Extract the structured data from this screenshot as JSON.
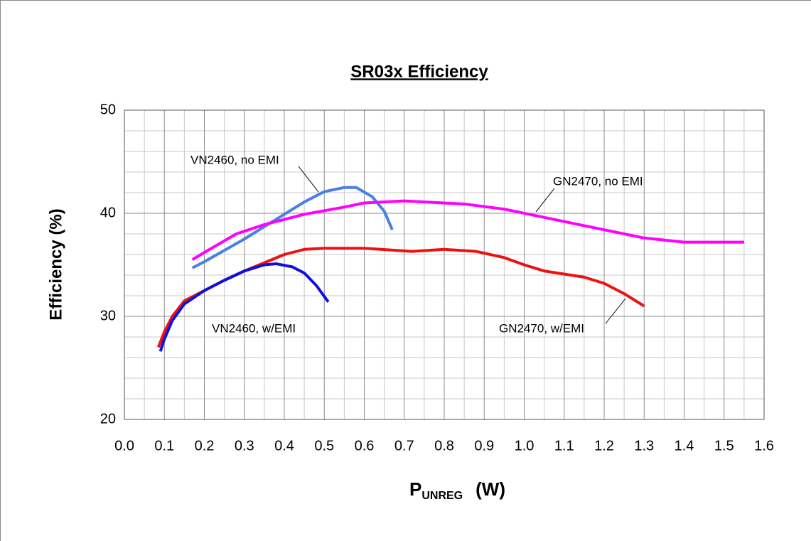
{
  "chart_data": {
    "type": "line",
    "title": "SR03x Efficiency",
    "x_label": {
      "main": "P",
      "sub": "UNREG",
      "unit": "(W)"
    },
    "y_label": "Efficiency (%)",
    "xlim": [
      0,
      1.6
    ],
    "ylim": [
      20,
      50
    ],
    "xticks": [
      {
        "value": 0,
        "label": "0.0"
      },
      0.1,
      0.2,
      0.3,
      0.4,
      0.5,
      0.6,
      0.7,
      0.8,
      0.9,
      {
        "value": 1,
        "label": "1.0"
      },
      1.1,
      1.2,
      1.3,
      1.4,
      1.5,
      1.6
    ],
    "yticks": [
      20,
      30,
      40,
      50
    ],
    "minor_xticks": [
      0.05,
      0.15,
      0.25,
      0.35,
      0.45,
      0.55,
      0.65,
      0.75,
      0.85,
      0.95,
      1.05,
      1.15,
      1.25,
      1.35,
      1.45,
      1.55
    ],
    "minor_yticks": [
      22,
      24,
      26,
      28,
      32,
      34,
      36,
      38,
      42,
      44,
      46,
      48
    ],
    "grid": true,
    "series": [
      {
        "name": "VN2460, no EMI",
        "color": "#4a7fe6",
        "x": [
          0.17,
          0.2,
          0.25,
          0.3,
          0.35,
          0.4,
          0.45,
          0.5,
          0.55,
          0.58,
          0.62,
          0.65,
          0.67
        ],
        "values": [
          34.7,
          35.3,
          36.4,
          37.5,
          38.7,
          39.9,
          41.1,
          42.1,
          42.5,
          42.5,
          41.6,
          40.2,
          38.4
        ]
      },
      {
        "name": "GN2470, no EMI",
        "color": "#ff00ff",
        "x": [
          0.17,
          0.2,
          0.28,
          0.35,
          0.45,
          0.55,
          0.6,
          0.7,
          0.85,
          0.95,
          1.05,
          1.15,
          1.3,
          1.4,
          1.55
        ],
        "values": [
          35.5,
          36.2,
          38.0,
          38.9,
          39.9,
          40.6,
          41.0,
          41.2,
          40.9,
          40.4,
          39.6,
          38.8,
          37.6,
          37.2,
          37.2
        ]
      },
      {
        "name": "GN2470, w/EMI",
        "color": "#ee1111",
        "x": [
          0.085,
          0.1,
          0.12,
          0.15,
          0.2,
          0.25,
          0.3,
          0.35,
          0.4,
          0.45,
          0.5,
          0.6,
          0.72,
          0.8,
          0.88,
          0.95,
          1.0,
          1.05,
          1.15,
          1.2,
          1.25,
          1.3
        ],
        "values": [
          27.0,
          28.5,
          30.0,
          31.5,
          32.5,
          33.5,
          34.4,
          35.2,
          36.0,
          36.5,
          36.6,
          36.6,
          36.3,
          36.5,
          36.3,
          35.7,
          35.0,
          34.4,
          33.8,
          33.2,
          32.2,
          31.0
        ]
      },
      {
        "name": "VN2460, w/EMI",
        "color": "#1010dd",
        "x": [
          0.09,
          0.1,
          0.12,
          0.15,
          0.2,
          0.25,
          0.3,
          0.35,
          0.38,
          0.42,
          0.45,
          0.48,
          0.51
        ],
        "values": [
          26.6,
          27.8,
          29.6,
          31.2,
          32.5,
          33.5,
          34.4,
          35.0,
          35.1,
          34.8,
          34.2,
          33.0,
          31.4
        ]
      }
    ]
  }
}
